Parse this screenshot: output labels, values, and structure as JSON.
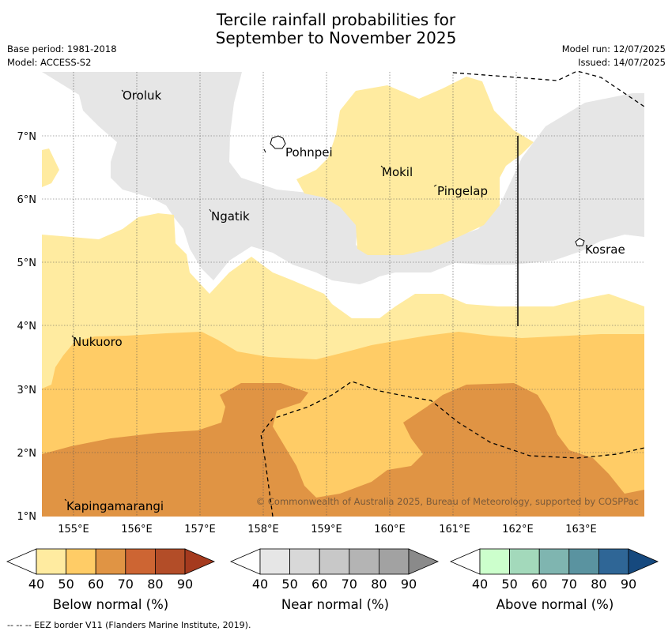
{
  "title_line1": "Tercile rainfall probabilities for",
  "title_line2": "September to November 2025",
  "meta": {
    "base_period": "Base period: 1981-2018",
    "model": "Model: ACCESS-S2",
    "model_run": "Model run: 12/07/2025",
    "issued": "Issued: 14/07/2025"
  },
  "map": {
    "lon_ticks": [
      "155°E",
      "156°E",
      "157°E",
      "158°E",
      "159°E",
      "160°E",
      "161°E",
      "162°E",
      "163°E"
    ],
    "lat_ticks": [
      "7°N",
      "6°N",
      "5°N",
      "4°N",
      "3°N",
      "2°N",
      "1°N"
    ],
    "places": [
      "Oroluk",
      "Pohnpei",
      "Mokil",
      "Pingelap",
      "Ngatik",
      "Kosrae",
      "Nukuoro",
      "Kapingamarangi"
    ],
    "copyright": "© Commonwealth of Australia 2025, Bureau of Meteorology, supported by COSPPac"
  },
  "colorbars": [
    {
      "label": "Below normal (%)",
      "ticks": [
        "40",
        "50",
        "60",
        "70",
        "80",
        "90"
      ],
      "colors": [
        "#ffeba0",
        "#ffcc66",
        "#e09444",
        "#cd6533",
        "#b34d28",
        "#a53a1e"
      ]
    },
    {
      "label": "Near normal (%)",
      "ticks": [
        "40",
        "50",
        "60",
        "70",
        "80",
        "90"
      ],
      "colors": [
        "#e6e6e6",
        "#d8d8d8",
        "#c8c8c8",
        "#b4b4b4",
        "#a2a2a2",
        "#8a8a8a"
      ]
    },
    {
      "label": "Above normal (%)",
      "ticks": [
        "40",
        "50",
        "60",
        "70",
        "80",
        "90"
      ],
      "colors": [
        "#ccffcc",
        "#a3d9bb",
        "#7fb5b0",
        "#5a93a0",
        "#2f6696",
        "#16497e"
      ]
    }
  ],
  "footnote": "--  --  -- EEZ border V11 (Flanders Marine Institute, 2019)."
}
